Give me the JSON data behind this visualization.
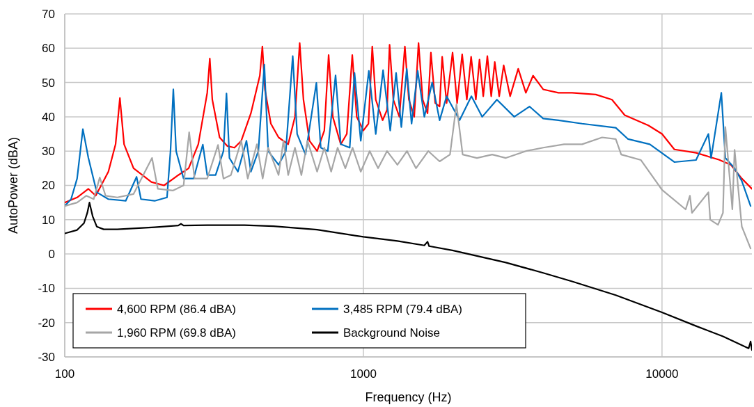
{
  "chart_data": {
    "type": "line",
    "xlabel": "Frequency (Hz)",
    "ylabel": "AutoPower (dBA)",
    "log": "x",
    "xlim": [
      100,
      20000
    ],
    "xticks": [
      100,
      1000,
      10000
    ],
    "ylim": [
      -30,
      70
    ],
    "yticks": [
      -30,
      -20,
      -10,
      0,
      10,
      20,
      30,
      40,
      50,
      60,
      70
    ],
    "grid": true,
    "legend": "bottom left",
    "marker": "none",
    "line_style": "solid",
    "series": [
      {
        "name": "4,600 RPM (86.4 dBA)",
        "color": "#ff0000",
        "x": [
          100,
          110,
          120,
          127,
          140,
          148,
          153,
          158,
          170,
          195,
          215,
          240,
          260,
          280,
          300,
          306,
          312,
          330,
          350,
          370,
          390,
          420,
          450,
          459,
          468,
          490,
          520,
          560,
          590,
          612,
          630,
          660,
          700,
          740,
          765,
          790,
          840,
          880,
          918,
          950,
          1000,
          1040,
          1071,
          1100,
          1160,
          1200,
          1224,
          1260,
          1320,
          1377,
          1420,
          1480,
          1530,
          1580,
          1640,
          1683,
          1740,
          1800,
          1836,
          1900,
          1989,
          2060,
          2142,
          2220,
          2295,
          2380,
          2448,
          2520,
          2601,
          2680,
          2754,
          2850,
          2950,
          3100,
          3300,
          3500,
          3700,
          4000,
          4500,
          5000,
          6000,
          6800,
          7500,
          9000,
          10000,
          11000,
          13000,
          15500,
          17000,
          18500,
          20000
        ],
        "values": [
          15,
          16.5,
          19,
          17,
          24,
          32,
          45.5,
          32,
          25,
          21,
          20,
          23,
          25,
          32,
          47,
          57,
          45,
          34,
          31.5,
          31,
          33,
          41,
          52,
          60.5,
          48,
          38,
          34,
          32,
          40,
          61.5,
          45,
          33,
          30,
          36,
          58,
          40,
          32,
          35,
          58,
          40,
          36,
          38,
          60.5,
          45,
          39,
          42,
          61,
          45,
          40,
          60.5,
          45,
          40,
          61.5,
          45,
          41,
          58.7,
          44,
          43,
          57.5,
          44,
          58.7,
          44,
          58.2,
          45,
          57.5,
          45,
          56.7,
          46,
          57.7,
          46,
          56,
          46,
          55,
          46,
          54,
          47,
          52,
          48,
          47,
          47,
          46.5,
          45,
          40.5,
          37.5,
          35,
          30.5,
          29.5,
          27.5,
          26,
          22,
          19
        ]
      },
      {
        "name": "3,485 RPM (79.4 dBA)",
        "color": "#0070c0",
        "x": [
          100,
          105,
          110,
          115,
          120,
          128,
          140,
          160,
          174,
          180,
          200,
          220,
          226,
          231,
          236,
          250,
          270,
          290,
          300,
          320,
          340,
          348,
          356,
          380,
          406,
          420,
          445,
          466,
          480,
          520,
          550,
          580,
          600,
          640,
          696,
          720,
          760,
          807,
          840,
          900,
          934,
          980,
          1043,
          1100,
          1164,
          1230,
          1287,
          1340,
          1397,
          1450,
          1520,
          1600,
          1700,
          1800,
          1900,
          2100,
          2300,
          2500,
          2800,
          3200,
          3600,
          4000,
          4500,
          5400,
          7000,
          7700,
          9100,
          11000,
          13000,
          14300,
          14600,
          15800,
          16300,
          17500,
          18500,
          19800
        ],
        "values": [
          14,
          16,
          22,
          36.4,
          28,
          18,
          16,
          15.5,
          22.5,
          16,
          15.5,
          16.5,
          30,
          48,
          30,
          22,
          22,
          31.9,
          23,
          23,
          30,
          46.8,
          28,
          24,
          33,
          24,
          30,
          55.2,
          30,
          26,
          30,
          57.7,
          35,
          29,
          49.9,
          31,
          30,
          52.1,
          32,
          31,
          52.8,
          33,
          53.4,
          35,
          53.6,
          36,
          52.8,
          37,
          54,
          38,
          53.4,
          40,
          50,
          39,
          46,
          39,
          46,
          40,
          45,
          40,
          43,
          39.5,
          39,
          38,
          36.8,
          33.5,
          32,
          26.8,
          27.4,
          35,
          28,
          47,
          28,
          25,
          21.3,
          14
        ]
      },
      {
        "name": "1,960 RPM (69.8 dBA)",
        "color": "#a6a6a6",
        "x": [
          100,
          110,
          118,
          125,
          131,
          137,
          150,
          170,
          196,
          205,
          230,
          250,
          261,
          272,
          300,
          326,
          340,
          360,
          390,
          410,
          440,
          460,
          480,
          520,
          540,
          560,
          590,
          620,
          650,
          700,
          740,
          780,
          820,
          870,
          920,
          980,
          1050,
          1120,
          1200,
          1300,
          1400,
          1500,
          1650,
          1800,
          1950,
          2050,
          2150,
          2400,
          2700,
          3000,
          3500,
          4000,
          4700,
          5400,
          6300,
          7000,
          7300,
          8500,
          10000,
          12000,
          12400,
          12600,
          14300,
          14500,
          15400,
          16000,
          16300,
          17200,
          17500,
          18500,
          19800
        ],
        "values": [
          14,
          15,
          17,
          16,
          22.3,
          17,
          16.5,
          17.5,
          28,
          19,
          18.5,
          20,
          35.5,
          22,
          22,
          31.8,
          22,
          23,
          33,
          22,
          32,
          22,
          31,
          23,
          33,
          23,
          31,
          23,
          33,
          24,
          31,
          24,
          31,
          25,
          31,
          24,
          30,
          25,
          30,
          26,
          30,
          25,
          30,
          27,
          29,
          43.6,
          29,
          28,
          29,
          28,
          30,
          31,
          32,
          32,
          34,
          33.5,
          29,
          27.4,
          18.7,
          13,
          17,
          12,
          18,
          10,
          8.5,
          12,
          37,
          13,
          30.4,
          8,
          1.6
        ]
      },
      {
        "name": "Background Noise",
        "color": "#000000",
        "x": [
          100,
          110,
          116,
          119,
          121,
          124,
          128,
          135,
          150,
          200,
          240,
          245,
          250,
          300,
          400,
          500,
          700,
          1000,
          1300,
          1600,
          1640,
          1660,
          2000,
          3000,
          4000,
          5000,
          7000,
          10000,
          13000,
          16000,
          19500,
          19800,
          20000
        ],
        "values": [
          6,
          7,
          9,
          12,
          15,
          11,
          8,
          7.2,
          7.2,
          7.8,
          8.3,
          8.8,
          8.3,
          8.4,
          8.4,
          8.1,
          7.1,
          5,
          3.8,
          2.5,
          3.6,
          2.3,
          1,
          -2.5,
          -5.5,
          -8,
          -12,
          -17,
          -21,
          -24,
          -27.5,
          -25.5,
          -28
        ]
      }
    ]
  }
}
